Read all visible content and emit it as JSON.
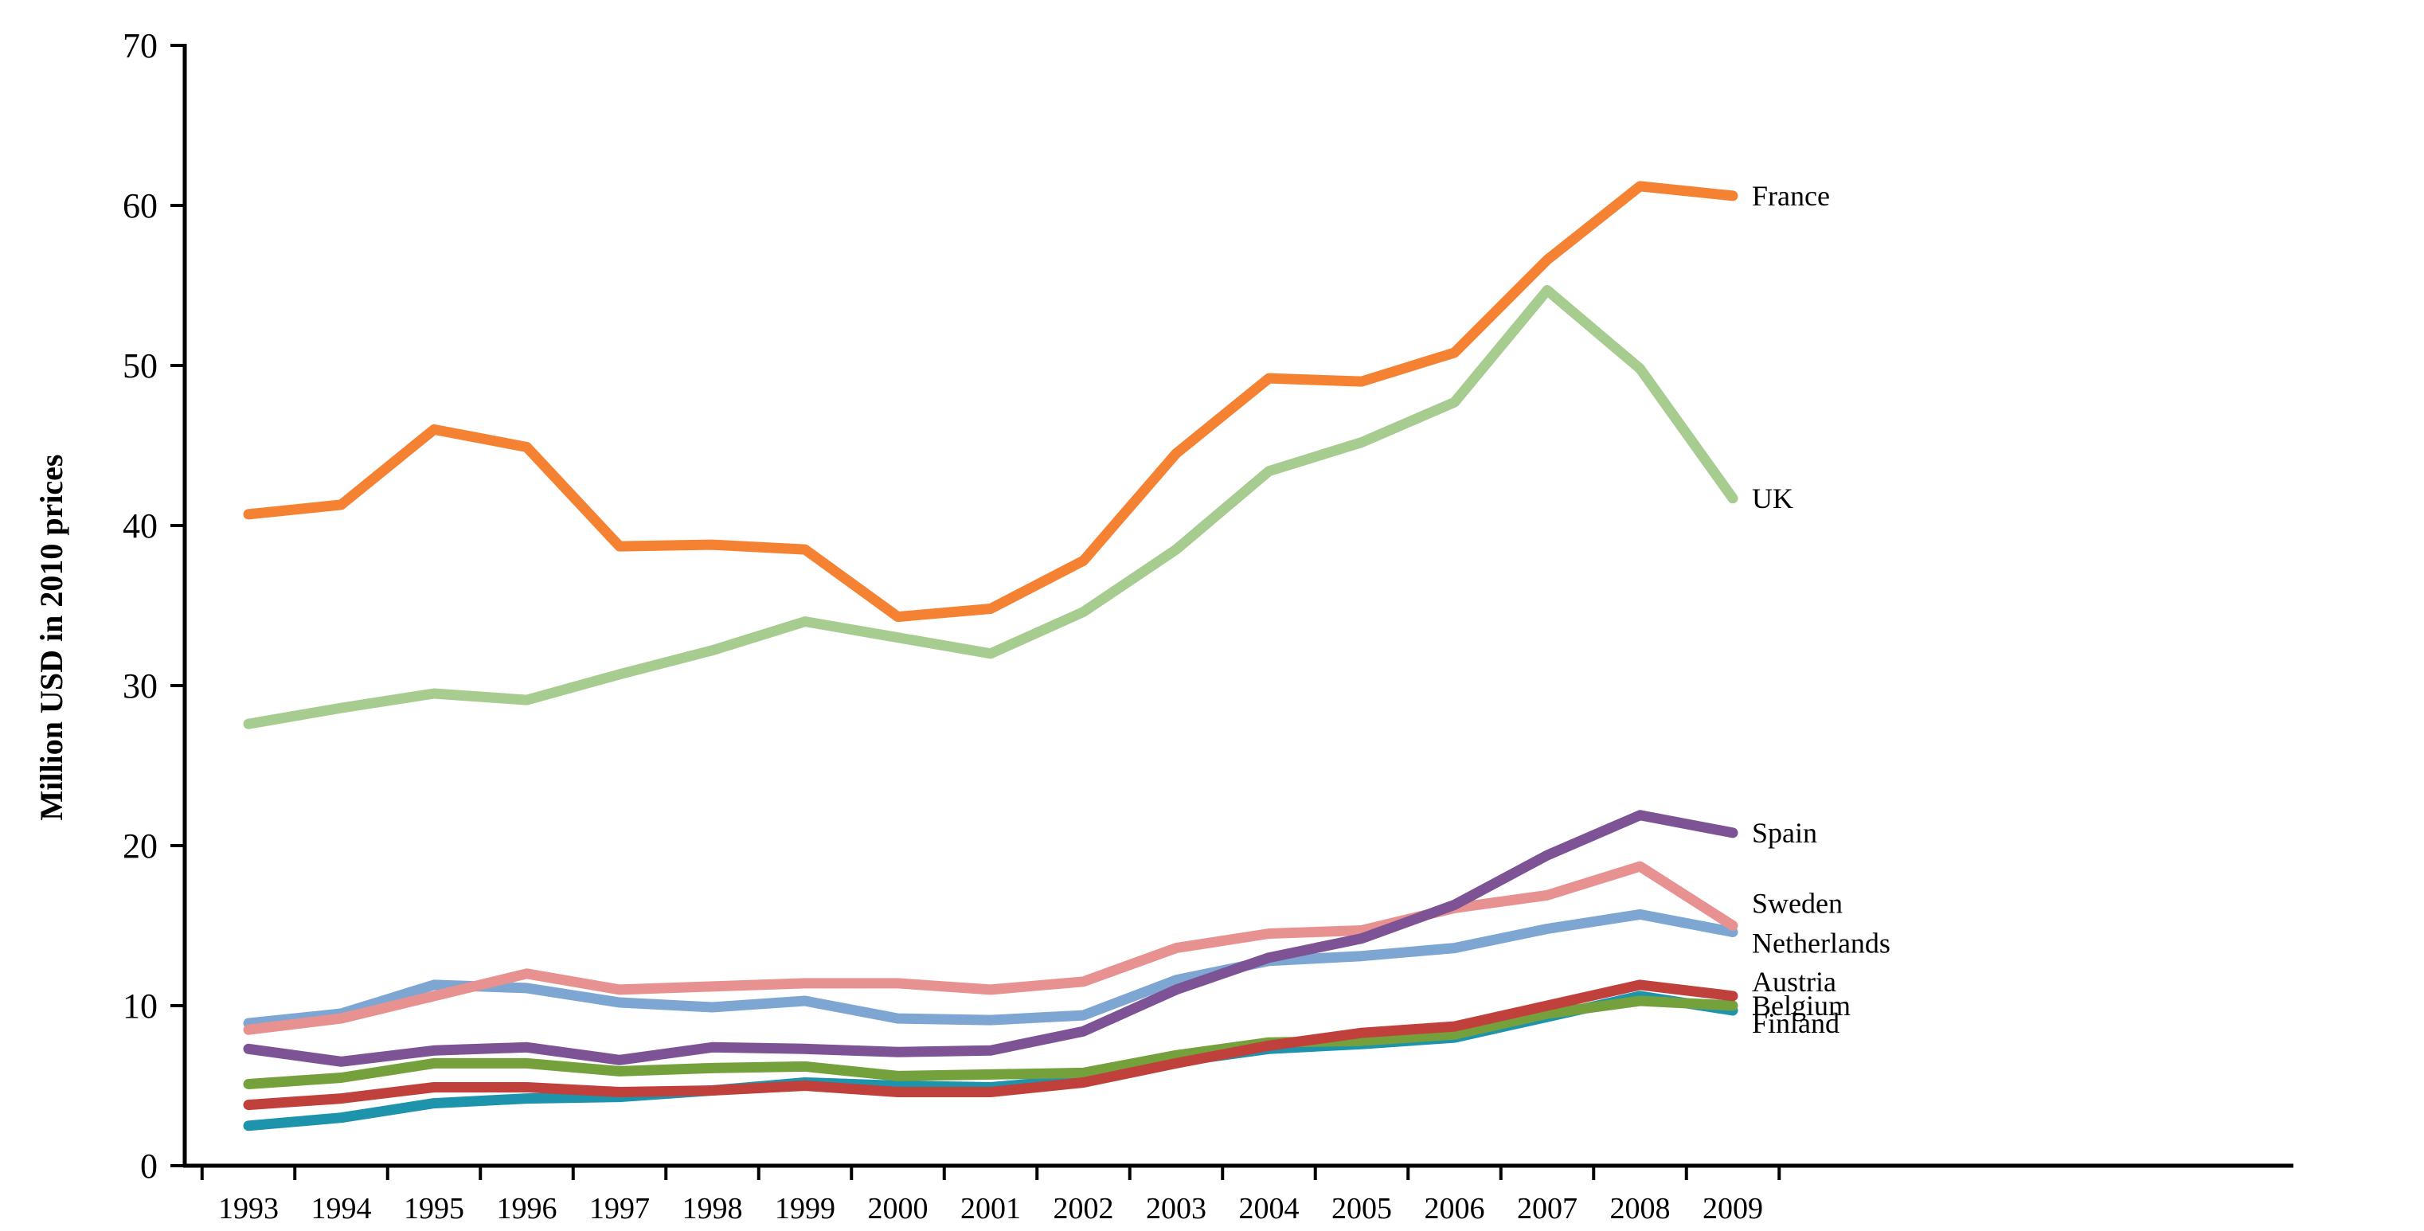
{
  "chart_data": {
    "type": "line",
    "title": "",
    "xlabel": "",
    "ylabel": "Million USD in 2010 prices",
    "ylim": [
      0,
      70
    ],
    "yticks": [
      "0",
      "10",
      "20",
      "30",
      "40",
      "50",
      "60",
      "70"
    ],
    "grid": false,
    "legend": "direct labels at line ends (right)",
    "categories": [
      "1993",
      "1994",
      "1995",
      "1996",
      "1997",
      "1998",
      "1999",
      "2000",
      "2001",
      "2002",
      "2003",
      "2004",
      "2005",
      "2006",
      "2007",
      "2008",
      "2009"
    ],
    "series": [
      {
        "name": "France",
        "color": "#F58233",
        "values": [
          40.7,
          41.3,
          46.0,
          44.9,
          38.7,
          38.8,
          38.5,
          34.3,
          34.8,
          37.8,
          44.5,
          49.2,
          49.0,
          50.8,
          56.6,
          61.2,
          60.6
        ]
      },
      {
        "name": "UK",
        "color": "#A6CC8F",
        "values": [
          27.6,
          28.6,
          29.5,
          29.1,
          30.7,
          32.2,
          34.0,
          33.0,
          32.0,
          34.6,
          38.5,
          43.4,
          45.2,
          47.7,
          54.7,
          49.8,
          41.7
        ]
      },
      {
        "name": "Spain",
        "color": "#7D5396",
        "values": [
          7.3,
          6.5,
          7.2,
          7.4,
          6.6,
          7.4,
          7.3,
          7.1,
          7.2,
          8.4,
          11.0,
          13.0,
          14.2,
          16.3,
          19.4,
          21.9,
          20.8
        ]
      },
      {
        "name": "Sweden",
        "color": "#E79290",
        "values": [
          8.5,
          9.2,
          10.6,
          12.0,
          11.0,
          11.2,
          11.4,
          11.4,
          11.0,
          11.5,
          13.6,
          14.5,
          14.7,
          16.1,
          16.9,
          18.7,
          15.0
        ]
      },
      {
        "name": "Netherlands",
        "color": "#7EA6D2",
        "values": [
          8.9,
          9.5,
          11.3,
          11.1,
          10.2,
          9.9,
          10.3,
          9.2,
          9.1,
          9.4,
          11.6,
          12.8,
          13.1,
          13.6,
          14.8,
          15.7,
          14.6
        ]
      },
      {
        "name": "Austria",
        "color": "#C0403C",
        "values": [
          3.8,
          4.2,
          4.9,
          4.9,
          4.6,
          4.7,
          5.0,
          4.6,
          4.6,
          5.2,
          6.4,
          7.5,
          8.3,
          8.7,
          10.0,
          11.3,
          10.6
        ]
      },
      {
        "name": "Belgium",
        "color": "#74A13C",
        "values": [
          5.1,
          5.5,
          6.4,
          6.4,
          5.9,
          6.1,
          6.2,
          5.6,
          5.7,
          5.8,
          6.9,
          7.7,
          7.8,
          8.2,
          9.5,
          10.3,
          10.0
        ]
      },
      {
        "name": "Finland",
        "color": "#1D94AC",
        "values": [
          2.5,
          3.0,
          3.9,
          4.2,
          4.3,
          4.7,
          5.2,
          5.0,
          4.9,
          5.4,
          6.5,
          7.3,
          7.6,
          8.0,
          9.3,
          10.6,
          9.7
        ]
      }
    ]
  }
}
